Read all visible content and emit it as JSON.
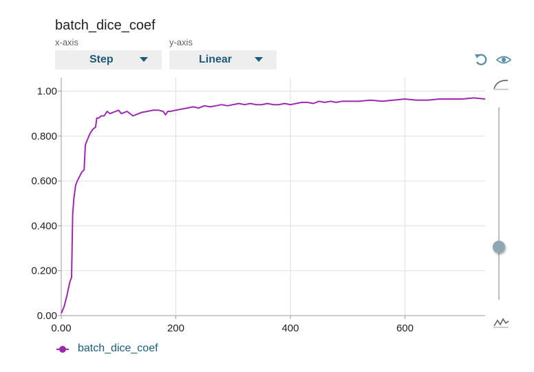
{
  "header": {
    "title": "batch_dice_coef",
    "x_axis_label": "x-axis",
    "y_axis_label": "y-axis",
    "x_axis_value": "Step",
    "y_axis_value": "Linear"
  },
  "colors": {
    "series": "#9c27b0",
    "accent": "#1d5a7a",
    "icon": "#5b8fa8"
  },
  "icons": {
    "reset": "reset-icon",
    "visibility": "eye-icon",
    "smooth_top": "smooth-curve-icon",
    "smooth_bottom": "raw-curve-icon"
  },
  "smoothing": {
    "level": 0.8
  },
  "chart_data": {
    "type": "line",
    "title": "",
    "xlabel": "",
    "ylabel": "",
    "xlim": [
      0,
      740
    ],
    "ylim": [
      0,
      1.06
    ],
    "grid": true,
    "legend_position": "bottom-left",
    "x_ticks": [
      0,
      200,
      400,
      600
    ],
    "x_tick_labels": [
      "0.00",
      "200",
      "400",
      "600"
    ],
    "y_ticks": [
      0,
      0.2,
      0.4,
      0.6,
      0.8,
      1.0
    ],
    "y_tick_labels": [
      "0.00",
      "0.200",
      "0.400",
      "0.600",
      "0.800",
      "1.00"
    ],
    "series": [
      {
        "name": "batch_dice_coef",
        "x": [
          0,
          5,
          10,
          15,
          18,
          20,
          22,
          25,
          28,
          32,
          36,
          40,
          42,
          45,
          50,
          55,
          60,
          62,
          65,
          70,
          75,
          80,
          85,
          90,
          95,
          100,
          105,
          110,
          115,
          120,
          125,
          130,
          140,
          150,
          160,
          170,
          178,
          182,
          186,
          190,
          200,
          210,
          220,
          230,
          240,
          250,
          260,
          270,
          280,
          290,
          300,
          310,
          320,
          330,
          340,
          350,
          360,
          370,
          380,
          390,
          400,
          410,
          420,
          430,
          440,
          450,
          460,
          470,
          480,
          490,
          500,
          520,
          540,
          560,
          580,
          600,
          620,
          640,
          660,
          680,
          700,
          720,
          740
        ],
        "y": [
          0.01,
          0.04,
          0.09,
          0.15,
          0.17,
          0.45,
          0.52,
          0.58,
          0.6,
          0.62,
          0.64,
          0.65,
          0.76,
          0.78,
          0.81,
          0.83,
          0.84,
          0.88,
          0.88,
          0.89,
          0.89,
          0.91,
          0.9,
          0.905,
          0.91,
          0.915,
          0.9,
          0.905,
          0.91,
          0.9,
          0.89,
          0.895,
          0.905,
          0.91,
          0.915,
          0.915,
          0.91,
          0.895,
          0.91,
          0.91,
          0.915,
          0.92,
          0.925,
          0.93,
          0.925,
          0.935,
          0.93,
          0.935,
          0.94,
          0.935,
          0.94,
          0.945,
          0.94,
          0.945,
          0.94,
          0.94,
          0.945,
          0.94,
          0.94,
          0.945,
          0.94,
          0.945,
          0.95,
          0.95,
          0.945,
          0.955,
          0.95,
          0.955,
          0.95,
          0.955,
          0.955,
          0.955,
          0.96,
          0.955,
          0.96,
          0.965,
          0.96,
          0.96,
          0.965,
          0.965,
          0.965,
          0.97,
          0.965
        ]
      }
    ]
  }
}
